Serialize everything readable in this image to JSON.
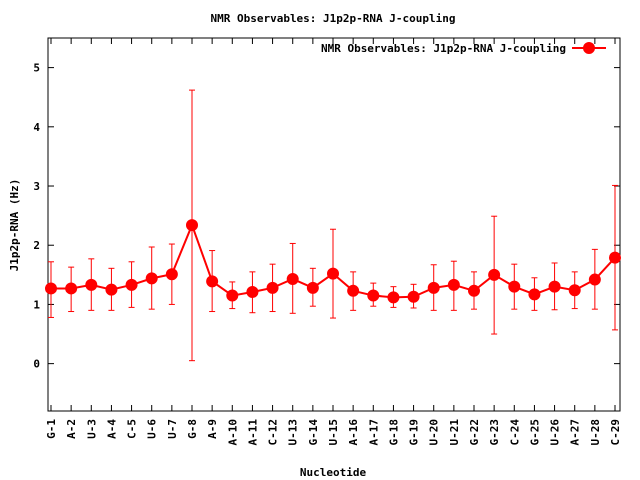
{
  "chart_data": {
    "type": "line",
    "title": "NMR Observables: J1p2p-RNA J-coupling",
    "xlabel": "Nucleotide",
    "ylabel": "J1p2p-RNA (Hz)",
    "ylim": [
      -0.8,
      5.5
    ],
    "yticks": [
      0,
      1,
      2,
      3,
      4,
      5
    ],
    "grid": false,
    "legend_position": "top-right",
    "categories": [
      "G-1",
      "A-2",
      "U-3",
      "A-4",
      "C-5",
      "U-6",
      "U-7",
      "G-8",
      "A-9",
      "A-10",
      "A-11",
      "C-12",
      "U-13",
      "G-14",
      "U-15",
      "A-16",
      "A-17",
      "G-18",
      "G-19",
      "U-20",
      "U-21",
      "G-22",
      "G-23",
      "C-24",
      "G-25",
      "U-26",
      "A-27",
      "U-28",
      "C-29"
    ],
    "series": [
      {
        "name": "NMR Observables: J1p2p-RNA J-coupling",
        "color": "#ff0000",
        "values": [
          1.27,
          1.27,
          1.33,
          1.25,
          1.33,
          1.44,
          1.51,
          2.34,
          1.39,
          1.15,
          1.21,
          1.28,
          1.43,
          1.28,
          1.52,
          1.23,
          1.15,
          1.12,
          1.13,
          1.28,
          1.33,
          1.23,
          1.5,
          1.3,
          1.17,
          1.3,
          1.24,
          1.42,
          1.79
        ],
        "error_low": [
          0.78,
          0.88,
          0.9,
          0.9,
          0.95,
          0.92,
          1.0,
          0.05,
          0.88,
          0.93,
          0.86,
          0.88,
          0.85,
          0.97,
          0.77,
          0.9,
          0.97,
          0.95,
          0.94,
          0.9,
          0.9,
          0.92,
          0.5,
          0.92,
          0.9,
          0.91,
          0.93,
          0.92,
          0.57
        ],
        "error_high": [
          1.72,
          1.63,
          1.77,
          1.61,
          1.72,
          1.97,
          2.02,
          4.62,
          1.91,
          1.38,
          1.55,
          1.68,
          2.03,
          1.61,
          2.27,
          1.55,
          1.36,
          1.3,
          1.34,
          1.67,
          1.73,
          1.55,
          2.49,
          1.68,
          1.45,
          1.7,
          1.55,
          1.93,
          3.01
        ]
      }
    ]
  }
}
